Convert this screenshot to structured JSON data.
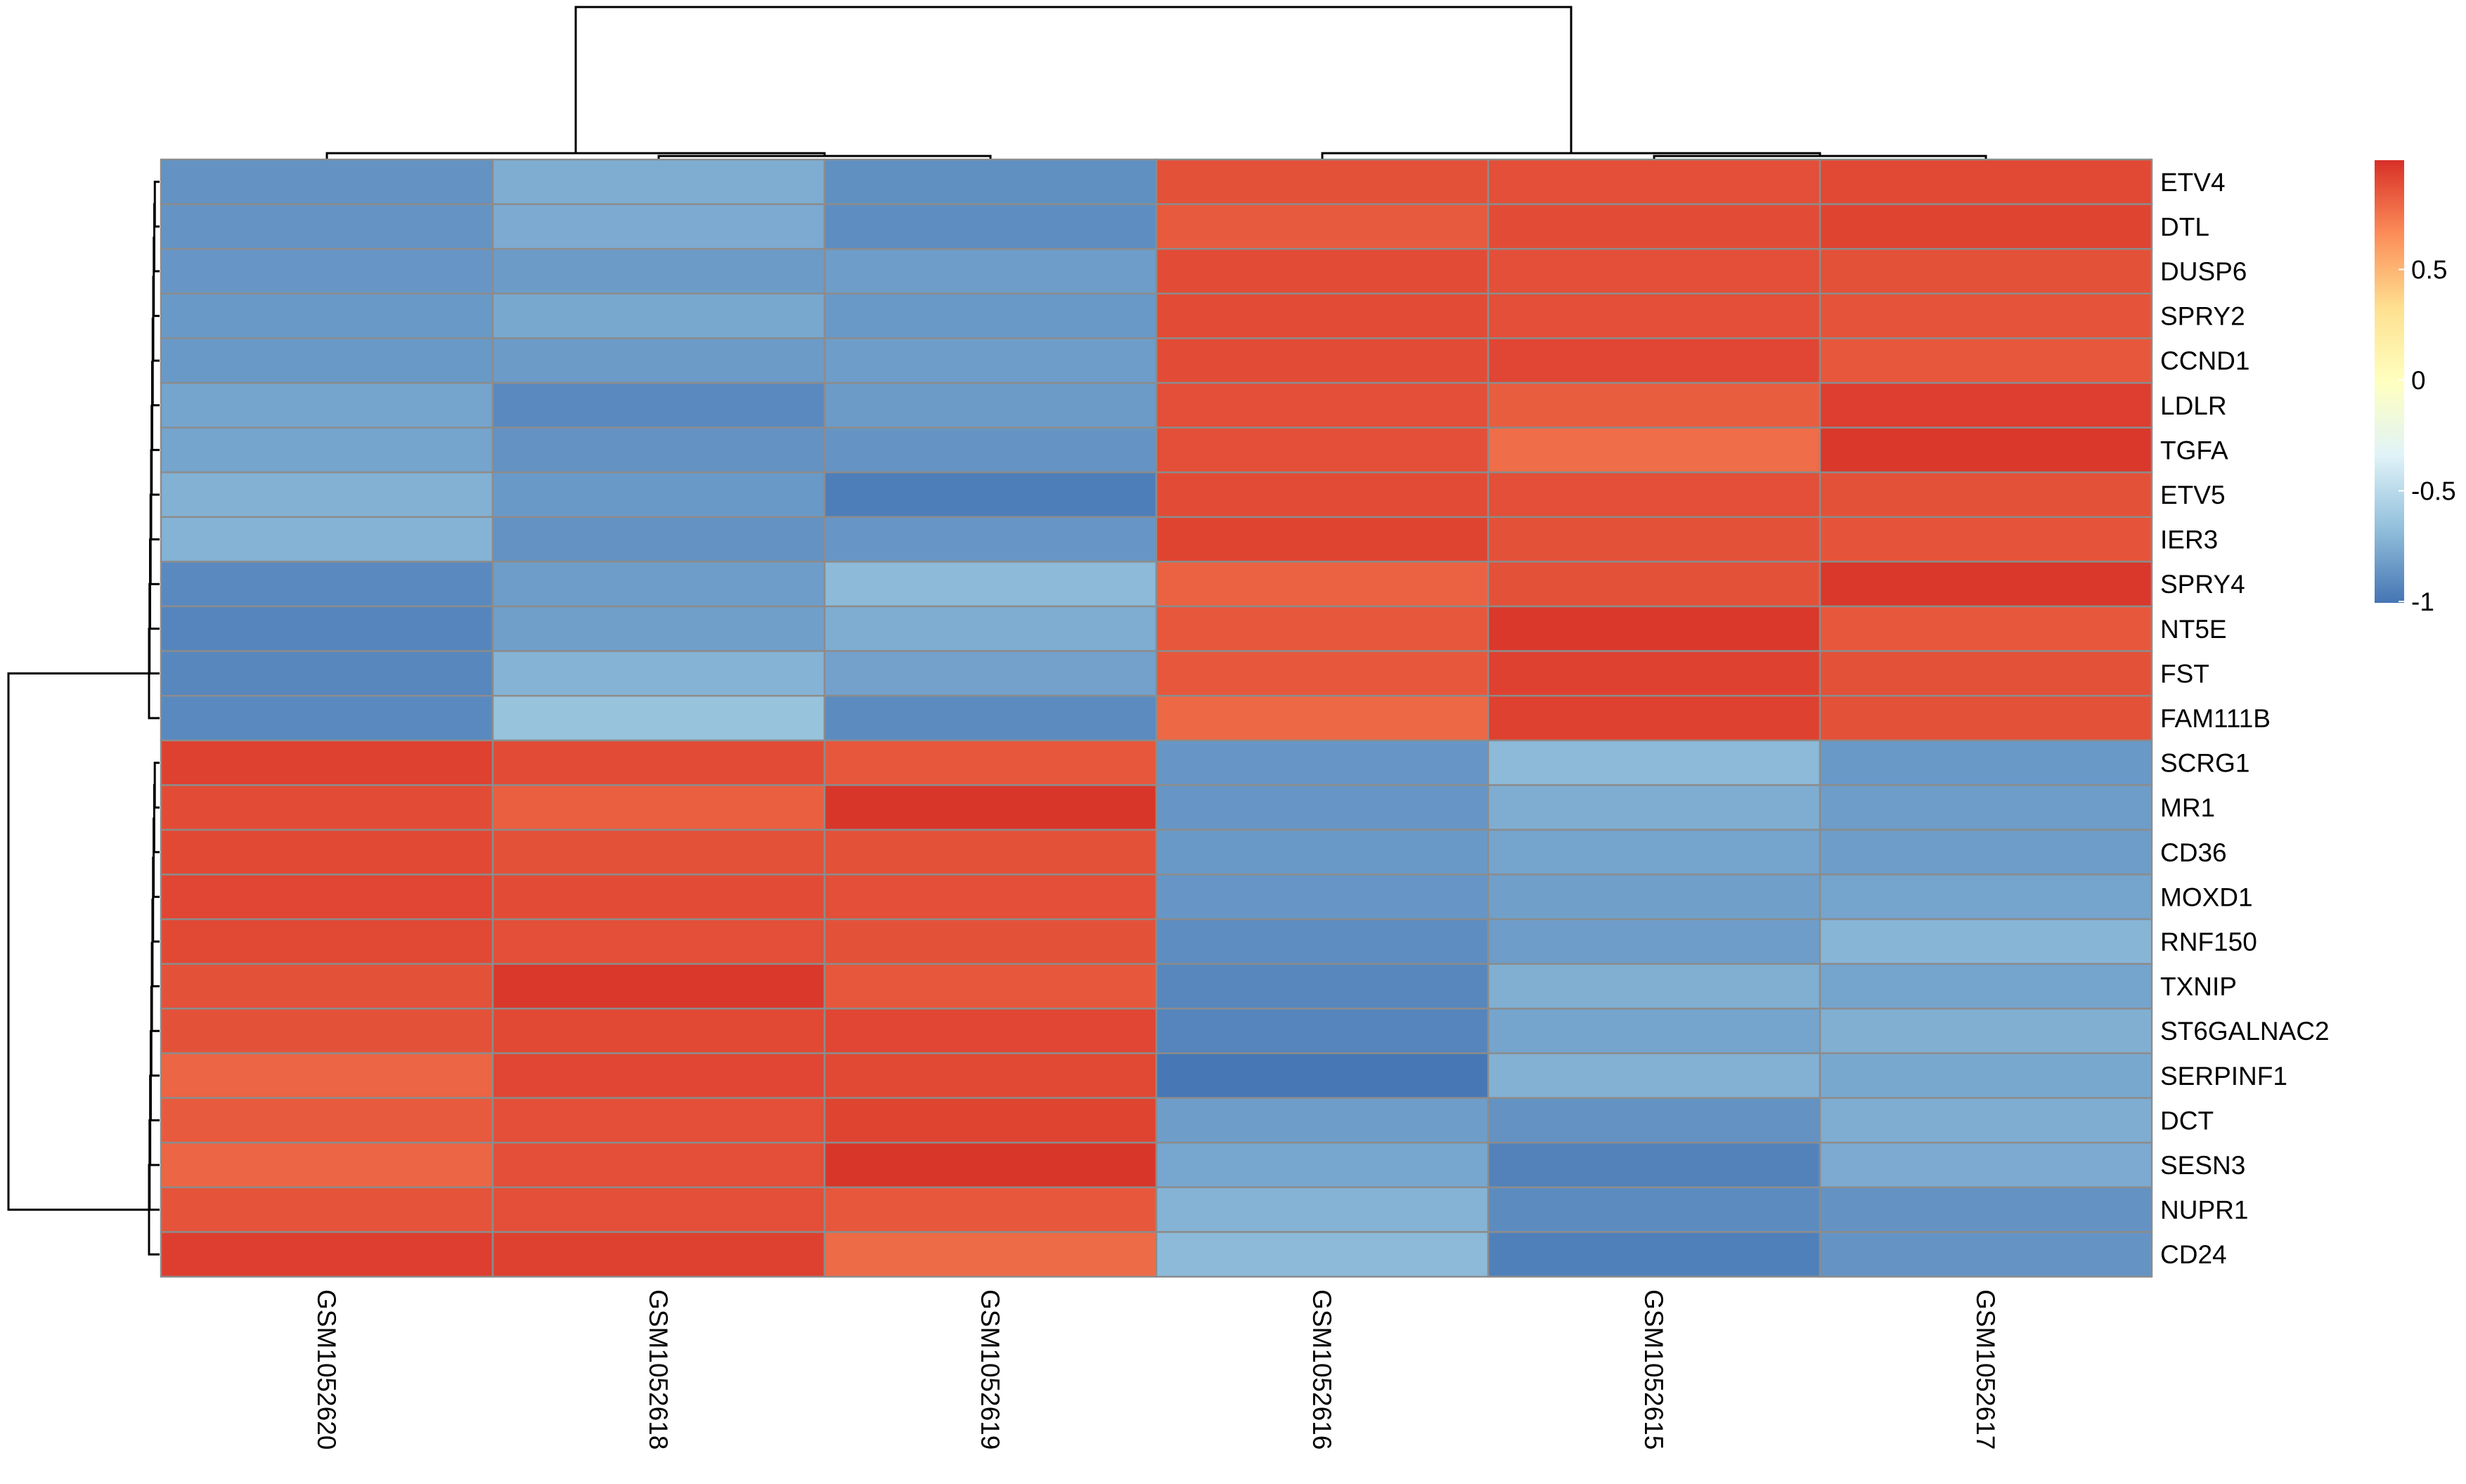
{
  "chart_data": {
    "type": "heatmap",
    "title": "",
    "columns": [
      "GSM1052620",
      "GSM1052618",
      "GSM1052619",
      "GSM1052616",
      "GSM1052615",
      "GSM1052617"
    ],
    "rows": [
      "ETV4",
      "DTL",
      "DUSP6",
      "SPRY2",
      "CCND1",
      "LDLR",
      "TGFA",
      "ETV5",
      "IER3",
      "SPRY4",
      "NT5E",
      "FST",
      "FAM111B",
      "SCRG1",
      "MR1",
      "CD36",
      "MOXD1",
      "RNF150",
      "TXNIP",
      "ST6GALNAC2",
      "SERPINF1",
      "DCT",
      "SESN3",
      "NUPR1",
      "CD24"
    ],
    "values": [
      [
        -0.87,
        -0.75,
        -0.88,
        0.88,
        0.89,
        0.91
      ],
      [
        -0.86,
        -0.76,
        -0.89,
        0.85,
        0.9,
        0.93
      ],
      [
        -0.85,
        -0.83,
        -0.82,
        0.9,
        0.89,
        0.88
      ],
      [
        -0.84,
        -0.77,
        -0.84,
        0.9,
        0.89,
        0.87
      ],
      [
        -0.84,
        -0.83,
        -0.82,
        0.9,
        0.92,
        0.86
      ],
      [
        -0.79,
        -0.91,
        -0.83,
        0.89,
        0.84,
        0.95
      ],
      [
        -0.79,
        -0.87,
        -0.86,
        0.89,
        0.78,
        0.97
      ],
      [
        -0.73,
        -0.84,
        -0.96,
        0.9,
        0.89,
        0.88
      ],
      [
        -0.72,
        -0.87,
        -0.85,
        0.93,
        0.88,
        0.87
      ],
      [
        -0.91,
        -0.82,
        -0.69,
        0.82,
        0.88,
        0.97
      ],
      [
        -0.93,
        -0.81,
        -0.75,
        0.86,
        0.97,
        0.86
      ],
      [
        -0.92,
        -0.72,
        -0.8,
        0.86,
        0.94,
        0.88
      ],
      [
        -0.91,
        -0.64,
        -0.9,
        0.8,
        0.94,
        0.88
      ],
      [
        0.94,
        0.9,
        0.86,
        -0.85,
        -0.69,
        -0.84
      ],
      [
        0.9,
        0.83,
        0.98,
        -0.85,
        -0.75,
        -0.82
      ],
      [
        0.91,
        0.88,
        0.88,
        -0.84,
        -0.79,
        -0.82
      ],
      [
        0.92,
        0.9,
        0.89,
        -0.85,
        -0.81,
        -0.79
      ],
      [
        0.91,
        0.89,
        0.88,
        -0.89,
        -0.82,
        -0.71
      ],
      [
        0.88,
        0.97,
        0.86,
        -0.92,
        -0.74,
        -0.79
      ],
      [
        0.88,
        0.91,
        0.92,
        -0.93,
        -0.79,
        -0.74
      ],
      [
        0.81,
        0.92,
        0.91,
        -0.99,
        -0.73,
        -0.77
      ],
      [
        0.85,
        0.89,
        0.93,
        -0.82,
        -0.87,
        -0.75
      ],
      [
        0.81,
        0.89,
        0.98,
        -0.78,
        -0.94,
        -0.76
      ],
      [
        0.87,
        0.89,
        0.86,
        -0.72,
        -0.9,
        -0.87
      ],
      [
        0.95,
        0.94,
        0.79,
        -0.69,
        -0.95,
        -0.86
      ]
    ],
    "color_scale": {
      "min": -1,
      "max": 1,
      "palette": [
        "#4575b4",
        "#91bfdb",
        "#e0f3f8",
        "#ffffbf",
        "#fee090",
        "#fc8d59",
        "#d73027"
      ],
      "tick_values": [
        0.5,
        0,
        -0.5,
        -1
      ],
      "tick_labels": [
        "0.5",
        "0",
        "-0.5",
        "-1"
      ]
    }
  }
}
